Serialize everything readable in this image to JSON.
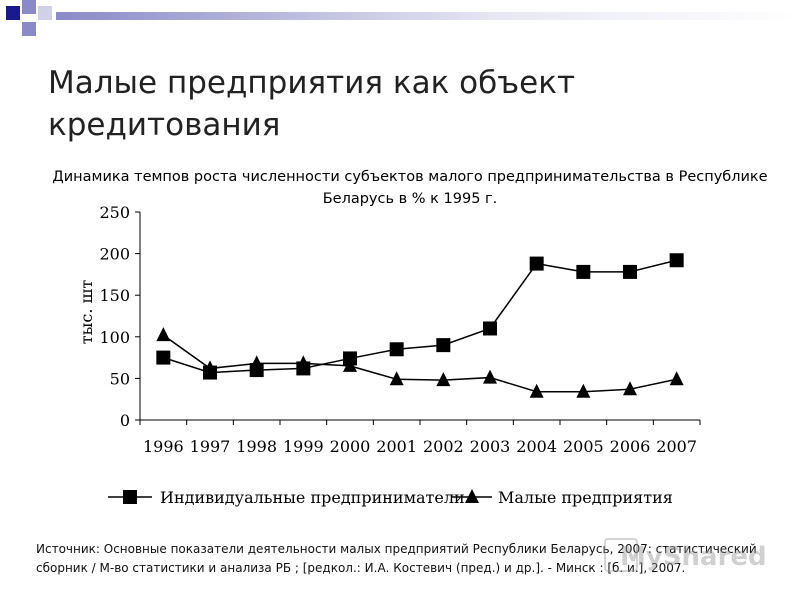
{
  "slide": {
    "title": "Малые предприятия как объект кредитования",
    "source_text": "Источник: Основные показатели деятельности малых предприятий Республики Беларусь, 2007: статистический сборник / М-во статистики и анализа РБ ; [редкол.: И.А. Костевич (пред.) и др.]. - Минск : [б. и.], 2007.",
    "watermark": "MyShared",
    "accent_colors": [
      "#1a1a8c",
      "#8a8ac8",
      "#d0d0e8"
    ]
  },
  "chart_data": {
    "type": "line",
    "title": "Динамика темпов роста численности  субъектов малого  предпринимательства в Республике Беларусь в % к 1995 г.",
    "xlabel": "",
    "ylabel": "тыс. шт",
    "categories": [
      "1996",
      "1997",
      "1998",
      "1999",
      "2000",
      "2001",
      "2002",
      "2003",
      "2004",
      "2005",
      "2006",
      "2007"
    ],
    "yticks": [
      "0",
      "50",
      "100",
      "150",
      "200",
      "250"
    ],
    "ylim": [
      0,
      250
    ],
    "grid": false,
    "legend": "bottom",
    "series": [
      {
        "name": "Индивидуальные предприниматели",
        "marker": "square",
        "values": [
          75,
          57,
          60,
          62,
          74,
          85,
          90,
          110,
          188,
          178,
          178,
          192
        ]
      },
      {
        "name": "Малые предприятия",
        "marker": "triangle",
        "values": [
          102,
          62,
          68,
          68,
          65,
          49,
          48,
          51,
          34,
          34,
          37,
          49
        ]
      }
    ]
  }
}
